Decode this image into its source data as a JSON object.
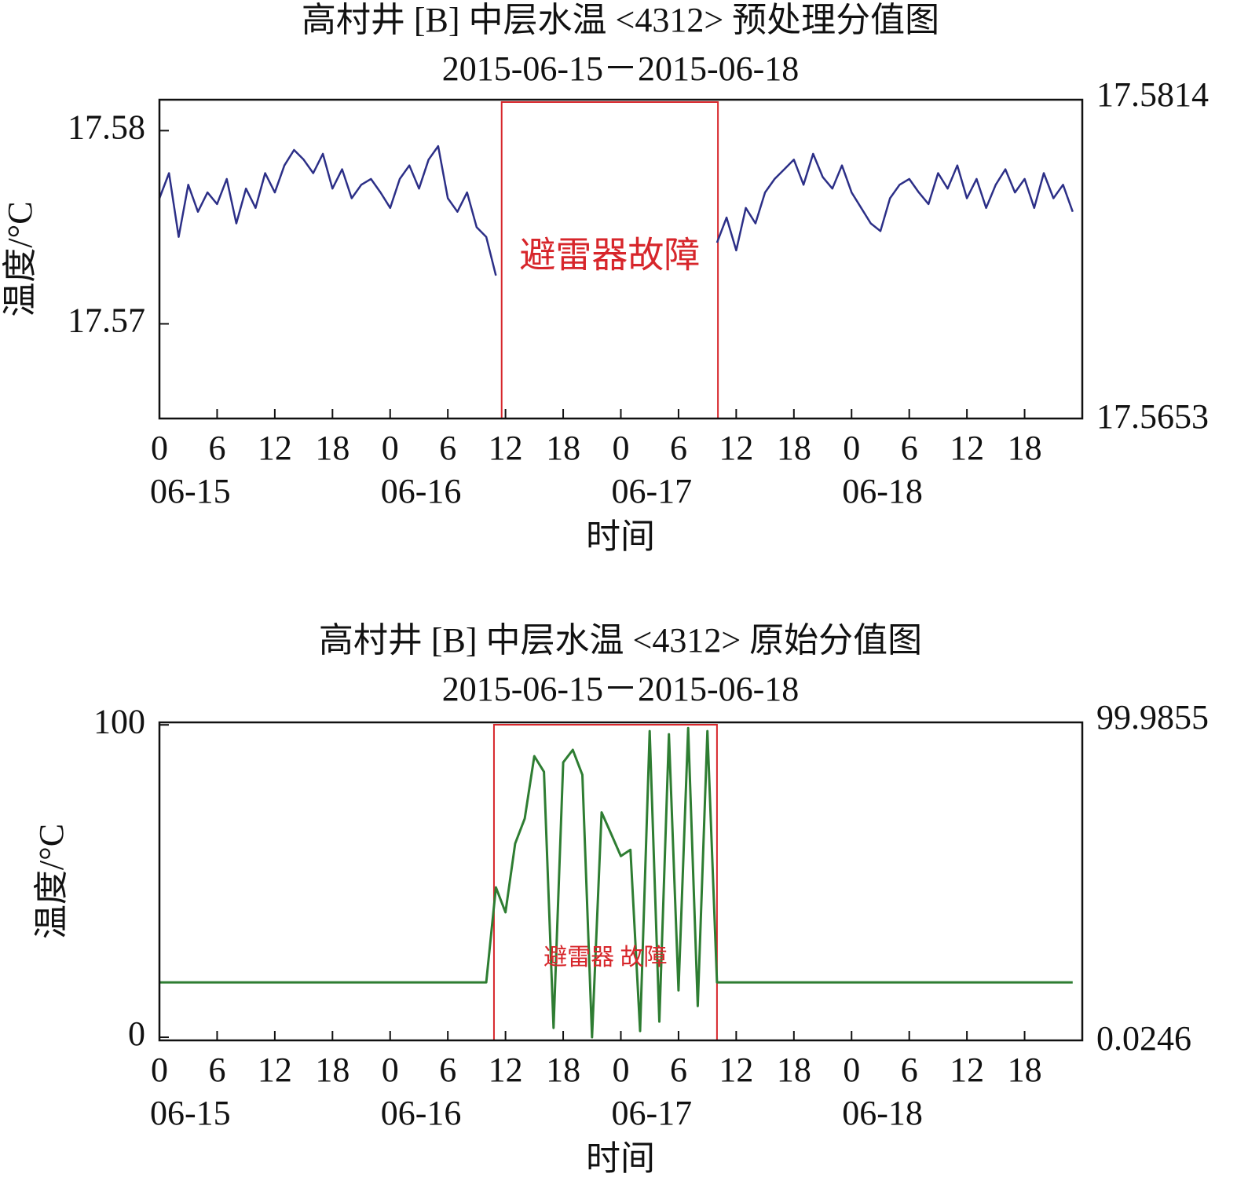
{
  "chart_data": [
    {
      "type": "line",
      "title": "高村井 [B] 中层水温 <4312> 预处理分值图",
      "subtitle": "2015-06-15－2015-06-18",
      "y_label": "温度/°C",
      "x_label": "时间",
      "xlim": [
        0,
        96
      ],
      "ylim": [
        17.5651,
        17.5816
      ],
      "xticks": [
        0,
        6,
        12,
        18,
        {
          "value": 24,
          "label": "0"
        },
        {
          "value": 30,
          "label": "6"
        },
        {
          "value": 36,
          "label": "12"
        },
        {
          "value": 42,
          "label": "18"
        },
        {
          "value": 48,
          "label": "0"
        },
        {
          "value": 54,
          "label": "6"
        },
        {
          "value": 60,
          "label": "12"
        },
        {
          "value": 66,
          "label": "18"
        },
        {
          "value": 72,
          "label": "0"
        },
        {
          "value": 78,
          "label": "6"
        },
        {
          "value": 84,
          "label": "12"
        },
        {
          "value": 90,
          "label": "18"
        }
      ],
      "xday_labels": [
        {
          "value": 0,
          "label": "06-15"
        },
        {
          "value": 24,
          "label": "06-16"
        },
        {
          "value": 48,
          "label": "06-17"
        },
        {
          "value": 72,
          "label": "06-18"
        }
      ],
      "yticks": [
        17.57,
        17.58
      ],
      "right_labels": {
        "top": 17.5814,
        "bottom": 17.5653
      },
      "fault": {
        "text": "避雷器故障",
        "x_range": [
          35.6,
          58.1
        ],
        "color": "#d7262b"
      },
      "x": [
        0,
        1,
        2,
        3,
        4,
        5,
        6,
        7,
        8,
        9,
        10,
        11,
        12,
        13,
        14,
        15,
        16,
        17,
        18,
        19,
        20,
        21,
        22,
        23,
        24,
        25,
        26,
        27,
        28,
        29,
        30,
        31,
        32,
        33,
        34,
        35,
        36,
        37,
        38,
        39,
        40,
        41,
        42,
        43,
        44,
        45,
        46,
        47,
        48,
        49,
        50,
        51,
        52,
        53,
        54,
        55,
        56,
        57,
        58,
        59,
        60,
        61,
        62,
        63,
        64,
        65,
        66,
        67,
        68,
        69,
        70,
        71,
        72,
        73,
        74,
        75,
        76,
        77,
        78,
        79,
        80,
        81,
        82,
        83,
        84,
        85,
        86,
        87,
        88,
        89,
        90,
        91,
        92,
        93,
        94,
        95
      ],
      "color": "#2c2f87",
      "values": [
        17.5765,
        17.5778,
        17.5745,
        17.5772,
        17.5758,
        17.5768,
        17.5762,
        17.5775,
        17.5752,
        17.577,
        17.576,
        17.5778,
        17.5768,
        17.5782,
        17.579,
        17.5785,
        17.5778,
        17.5788,
        17.577,
        17.578,
        17.5765,
        17.5772,
        17.5775,
        17.5768,
        17.576,
        17.5775,
        17.5782,
        17.577,
        17.5785,
        17.5792,
        17.5765,
        17.5758,
        17.5768,
        17.575,
        17.5745,
        17.5725,
        null,
        null,
        null,
        null,
        null,
        null,
        null,
        null,
        null,
        null,
        null,
        null,
        null,
        null,
        null,
        null,
        null,
        null,
        null,
        null,
        null,
        null,
        17.5742,
        17.5755,
        17.5738,
        17.576,
        17.5752,
        17.5768,
        17.5775,
        17.578,
        17.5785,
        17.5772,
        17.5788,
        17.5776,
        17.577,
        17.5782,
        17.5768,
        17.576,
        17.5752,
        17.5748,
        17.5765,
        17.5772,
        17.5775,
        17.5768,
        17.5762,
        17.5778,
        17.577,
        17.5782,
        17.5765,
        17.5775,
        17.576,
        17.5772,
        17.578,
        17.5768,
        17.5775,
        17.576,
        17.5778,
        17.5765,
        17.5772,
        17.5758
      ]
    },
    {
      "type": "line",
      "title": "高村井 [B] 中层水温 <4312> 原始分值图",
      "subtitle": "2015-06-15－2015-06-18",
      "y_label": "温度/°C",
      "x_label": "时间",
      "xlim": [
        0,
        96
      ],
      "ylim": [
        -1,
        100.8
      ],
      "xticks": [
        0,
        6,
        12,
        18,
        {
          "value": 24,
          "label": "0"
        },
        {
          "value": 30,
          "label": "6"
        },
        {
          "value": 36,
          "label": "12"
        },
        {
          "value": 42,
          "label": "18"
        },
        {
          "value": 48,
          "label": "0"
        },
        {
          "value": 54,
          "label": "6"
        },
        {
          "value": 60,
          "label": "12"
        },
        {
          "value": 66,
          "label": "18"
        },
        {
          "value": 72,
          "label": "0"
        },
        {
          "value": 78,
          "label": "6"
        },
        {
          "value": 84,
          "label": "12"
        },
        {
          "value": 90,
          "label": "18"
        }
      ],
      "xday_labels": [
        {
          "value": 0,
          "label": "06-15"
        },
        {
          "value": 24,
          "label": "06-16"
        },
        {
          "value": 48,
          "label": "06-17"
        },
        {
          "value": 72,
          "label": "06-18"
        }
      ],
      "yticks": [
        0,
        100
      ],
      "right_labels": {
        "top": 99.9855,
        "bottom": 0.0246
      },
      "fault": {
        "text": "避雷器 故障",
        "x_range": [
          34.8,
          58
        ],
        "color": "#d7262b"
      },
      "x": [
        0,
        1,
        2,
        3,
        4,
        5,
        6,
        7,
        8,
        9,
        10,
        11,
        12,
        13,
        14,
        15,
        16,
        17,
        18,
        19,
        20,
        21,
        22,
        23,
        24,
        25,
        26,
        27,
        28,
        29,
        30,
        31,
        32,
        33,
        34,
        35,
        36,
        37,
        38,
        39,
        40,
        41,
        42,
        43,
        44,
        45,
        46,
        47,
        48,
        49,
        50,
        51,
        52,
        53,
        54,
        55,
        56,
        57,
        58,
        59,
        60,
        61,
        62,
        63,
        64,
        65,
        66,
        67,
        68,
        69,
        70,
        71,
        72,
        73,
        74,
        75,
        76,
        77,
        78,
        79,
        80,
        81,
        82,
        83,
        84,
        85,
        86,
        87,
        88,
        89,
        90,
        91,
        92,
        93,
        94,
        95
      ],
      "color": "#2e7d32",
      "values": [
        17.57,
        17.57,
        17.57,
        17.57,
        17.57,
        17.57,
        17.57,
        17.57,
        17.57,
        17.57,
        17.57,
        17.57,
        17.57,
        17.57,
        17.57,
        17.57,
        17.57,
        17.57,
        17.57,
        17.57,
        17.57,
        17.57,
        17.57,
        17.57,
        17.57,
        17.57,
        17.57,
        17.57,
        17.57,
        17.57,
        17.57,
        17.57,
        17.57,
        17.57,
        17.57,
        48,
        40,
        62,
        70,
        90,
        85,
        3,
        88,
        92,
        84,
        0,
        72,
        65,
        58,
        60,
        2,
        98,
        5,
        97,
        15,
        99,
        10,
        98,
        17.57,
        17.57,
        17.57,
        17.57,
        17.57,
        17.57,
        17.57,
        17.57,
        17.57,
        17.57,
        17.57,
        17.57,
        17.57,
        17.57,
        17.57,
        17.57,
        17.57,
        17.57,
        17.57,
        17.57,
        17.57,
        17.57,
        17.57,
        17.57,
        17.57,
        17.57,
        17.57,
        17.57,
        17.57,
        17.57,
        17.57,
        17.57,
        17.57,
        17.57,
        17.57,
        17.57,
        17.57,
        17.57
      ]
    }
  ]
}
